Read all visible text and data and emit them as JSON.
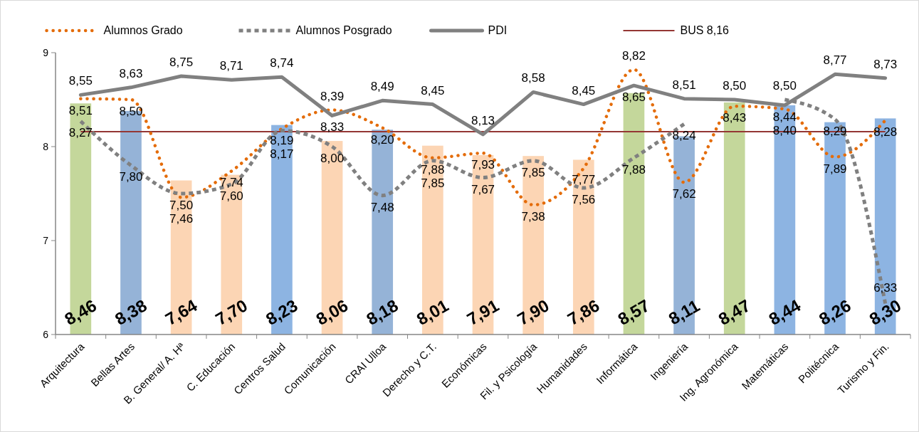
{
  "chart_data": {
    "type": "bar",
    "categories": [
      "Arquitectura",
      "Bellas Artes",
      "B. General/ A. Hª",
      "C. Educación",
      "Centros Salud",
      "Comunicación",
      "CRAI Ulloa",
      "Derecho y C.T.",
      "Económicas",
      "Fil. y Psicología",
      "Humanidades",
      "Informática",
      "Ingeniería",
      "Ing. Agronómica",
      "Matemáticas",
      "Politécnica",
      "Turismo y Fin."
    ],
    "series": [
      {
        "values": [
          8.46,
          8.38,
          7.64,
          7.7,
          8.23,
          8.06,
          8.18,
          8.01,
          7.91,
          7.9,
          7.86,
          8.57,
          8.11,
          8.47,
          8.44,
          8.26,
          8.3
        ],
        "value_labels": [
          "8,46",
          "8,38",
          "7,64",
          "7,70",
          "8,23",
          "8,06",
          "8,18",
          "8,01",
          "7,91",
          "7,90",
          "7,86",
          "8,57",
          "8,11",
          "8,47",
          "8,44",
          "8,26",
          "8,30"
        ],
        "colors": [
          "#c4d79b",
          "#95b3d7",
          "#fcd5b4",
          "#fcd5b4",
          "#8db4e2",
          "#fcd5b4",
          "#95b3d7",
          "#fcd5b4",
          "#fcd5b4",
          "#fcd5b4",
          "#fcd5b4",
          "#c4d79b",
          "#95b3d7",
          "#c4d79b",
          "#8db4e2",
          "#8db4e2",
          "#8db4e2"
        ]
      },
      {
        "type": "line",
        "name": "Alumnos Grado",
        "color": "#e46c0a",
        "line_style": "dotted",
        "values": [
          8.51,
          8.5,
          7.46,
          7.74,
          8.19,
          8.39,
          8.2,
          7.88,
          7.93,
          7.38,
          7.77,
          8.82,
          7.62,
          8.43,
          8.4,
          7.89,
          8.28
        ],
        "value_labels": [
          "8,51",
          "8,50",
          "7,46",
          "7,74",
          "8,19",
          "8,39",
          "8,20",
          "7,88",
          "7,93",
          "7,38",
          "7,77",
          "8,82",
          "7,62",
          "8,43",
          "8,40",
          "7,89",
          "8,28"
        ]
      },
      {
        "type": "line",
        "name": "Alumnos Posgrado",
        "color": "#808080",
        "line_style": "dashed",
        "values": [
          8.27,
          7.8,
          7.5,
          7.6,
          8.17,
          8.0,
          7.48,
          7.85,
          7.67,
          7.85,
          7.56,
          7.88,
          8.24,
          null,
          8.5,
          8.29,
          6.33
        ],
        "value_labels": [
          "8,27",
          "7,80",
          "7,50",
          "7,60",
          "8,17",
          "8,00",
          "7,48",
          "7,85",
          "7,67",
          "7,85",
          "7,56",
          "7,88",
          "8,24",
          null,
          "8,50",
          "8,29",
          "6,33"
        ]
      },
      {
        "type": "line",
        "name": "PDI",
        "color": "#808080",
        "line_style": "solid",
        "values": [
          8.55,
          8.63,
          8.75,
          8.71,
          8.74,
          8.33,
          8.49,
          8.45,
          8.13,
          8.58,
          8.45,
          8.65,
          8.51,
          8.5,
          8.44,
          8.77,
          8.73
        ],
        "value_labels": [
          "8,55",
          "8,63",
          "8,75",
          "8,71",
          "8,74",
          "8,33",
          "8,49",
          "8,45",
          "8,13",
          "8,58",
          "8,45",
          "8,65",
          "8,51",
          "8,50",
          "8,44",
          "8,77",
          "8,73"
        ]
      }
    ],
    "ref_lines": [
      {
        "axis": "y",
        "value": 8.16,
        "label": "BUS 8,16",
        "color": "#943634"
      }
    ],
    "ylim": [
      6,
      9
    ],
    "yticks": [
      6,
      7,
      8,
      9
    ],
    "grid": false,
    "legend": "top"
  }
}
